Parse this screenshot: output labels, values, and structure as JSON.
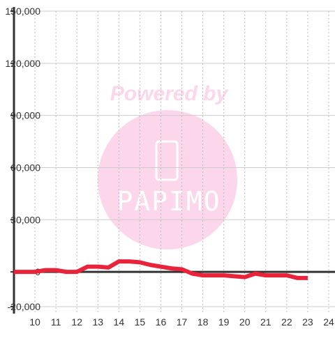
{
  "chart_data": {
    "type": "line",
    "watermark": {
      "top": "Powered by",
      "logo": "PAPIMO"
    },
    "x": [
      9,
      9.5,
      10,
      10.5,
      11,
      11.5,
      12,
      12.5,
      13,
      13.5,
      14,
      14.5,
      15,
      15.5,
      16,
      16.5,
      17,
      17.5,
      18,
      18.5,
      19,
      19.5,
      20,
      20.5,
      21,
      21.5,
      22,
      22.5,
      23
    ],
    "series": [
      {
        "color": "#e8233a",
        "values": [
          0,
          0,
          0,
          1000,
          1000,
          0,
          0,
          3000,
          3000,
          2500,
          6000,
          6000,
          5500,
          4000,
          3000,
          2000,
          1500,
          -1000,
          -2000,
          -2000,
          -2000,
          -2500,
          -3000,
          -1000,
          -2000,
          -2000,
          -2000,
          -3500,
          -3500
        ]
      }
    ],
    "xlim": [
      9,
      24.3
    ],
    "xticks": [
      10,
      11,
      12,
      13,
      14,
      15,
      16,
      17,
      18,
      19,
      20,
      21,
      22,
      23,
      24
    ],
    "ylim": [
      -20000,
      150000
    ],
    "yticks": [
      {
        "value": -20000,
        "label": "-20,000"
      },
      0,
      {
        "value": 30000,
        "label": "30,000"
      },
      {
        "value": 60000,
        "label": "60,000"
      },
      {
        "value": 90000,
        "label": "90,000"
      },
      {
        "value": 120000,
        "label": "120,000"
      },
      {
        "value": 150000,
        "label": "150,000"
      }
    ],
    "grid": true
  }
}
